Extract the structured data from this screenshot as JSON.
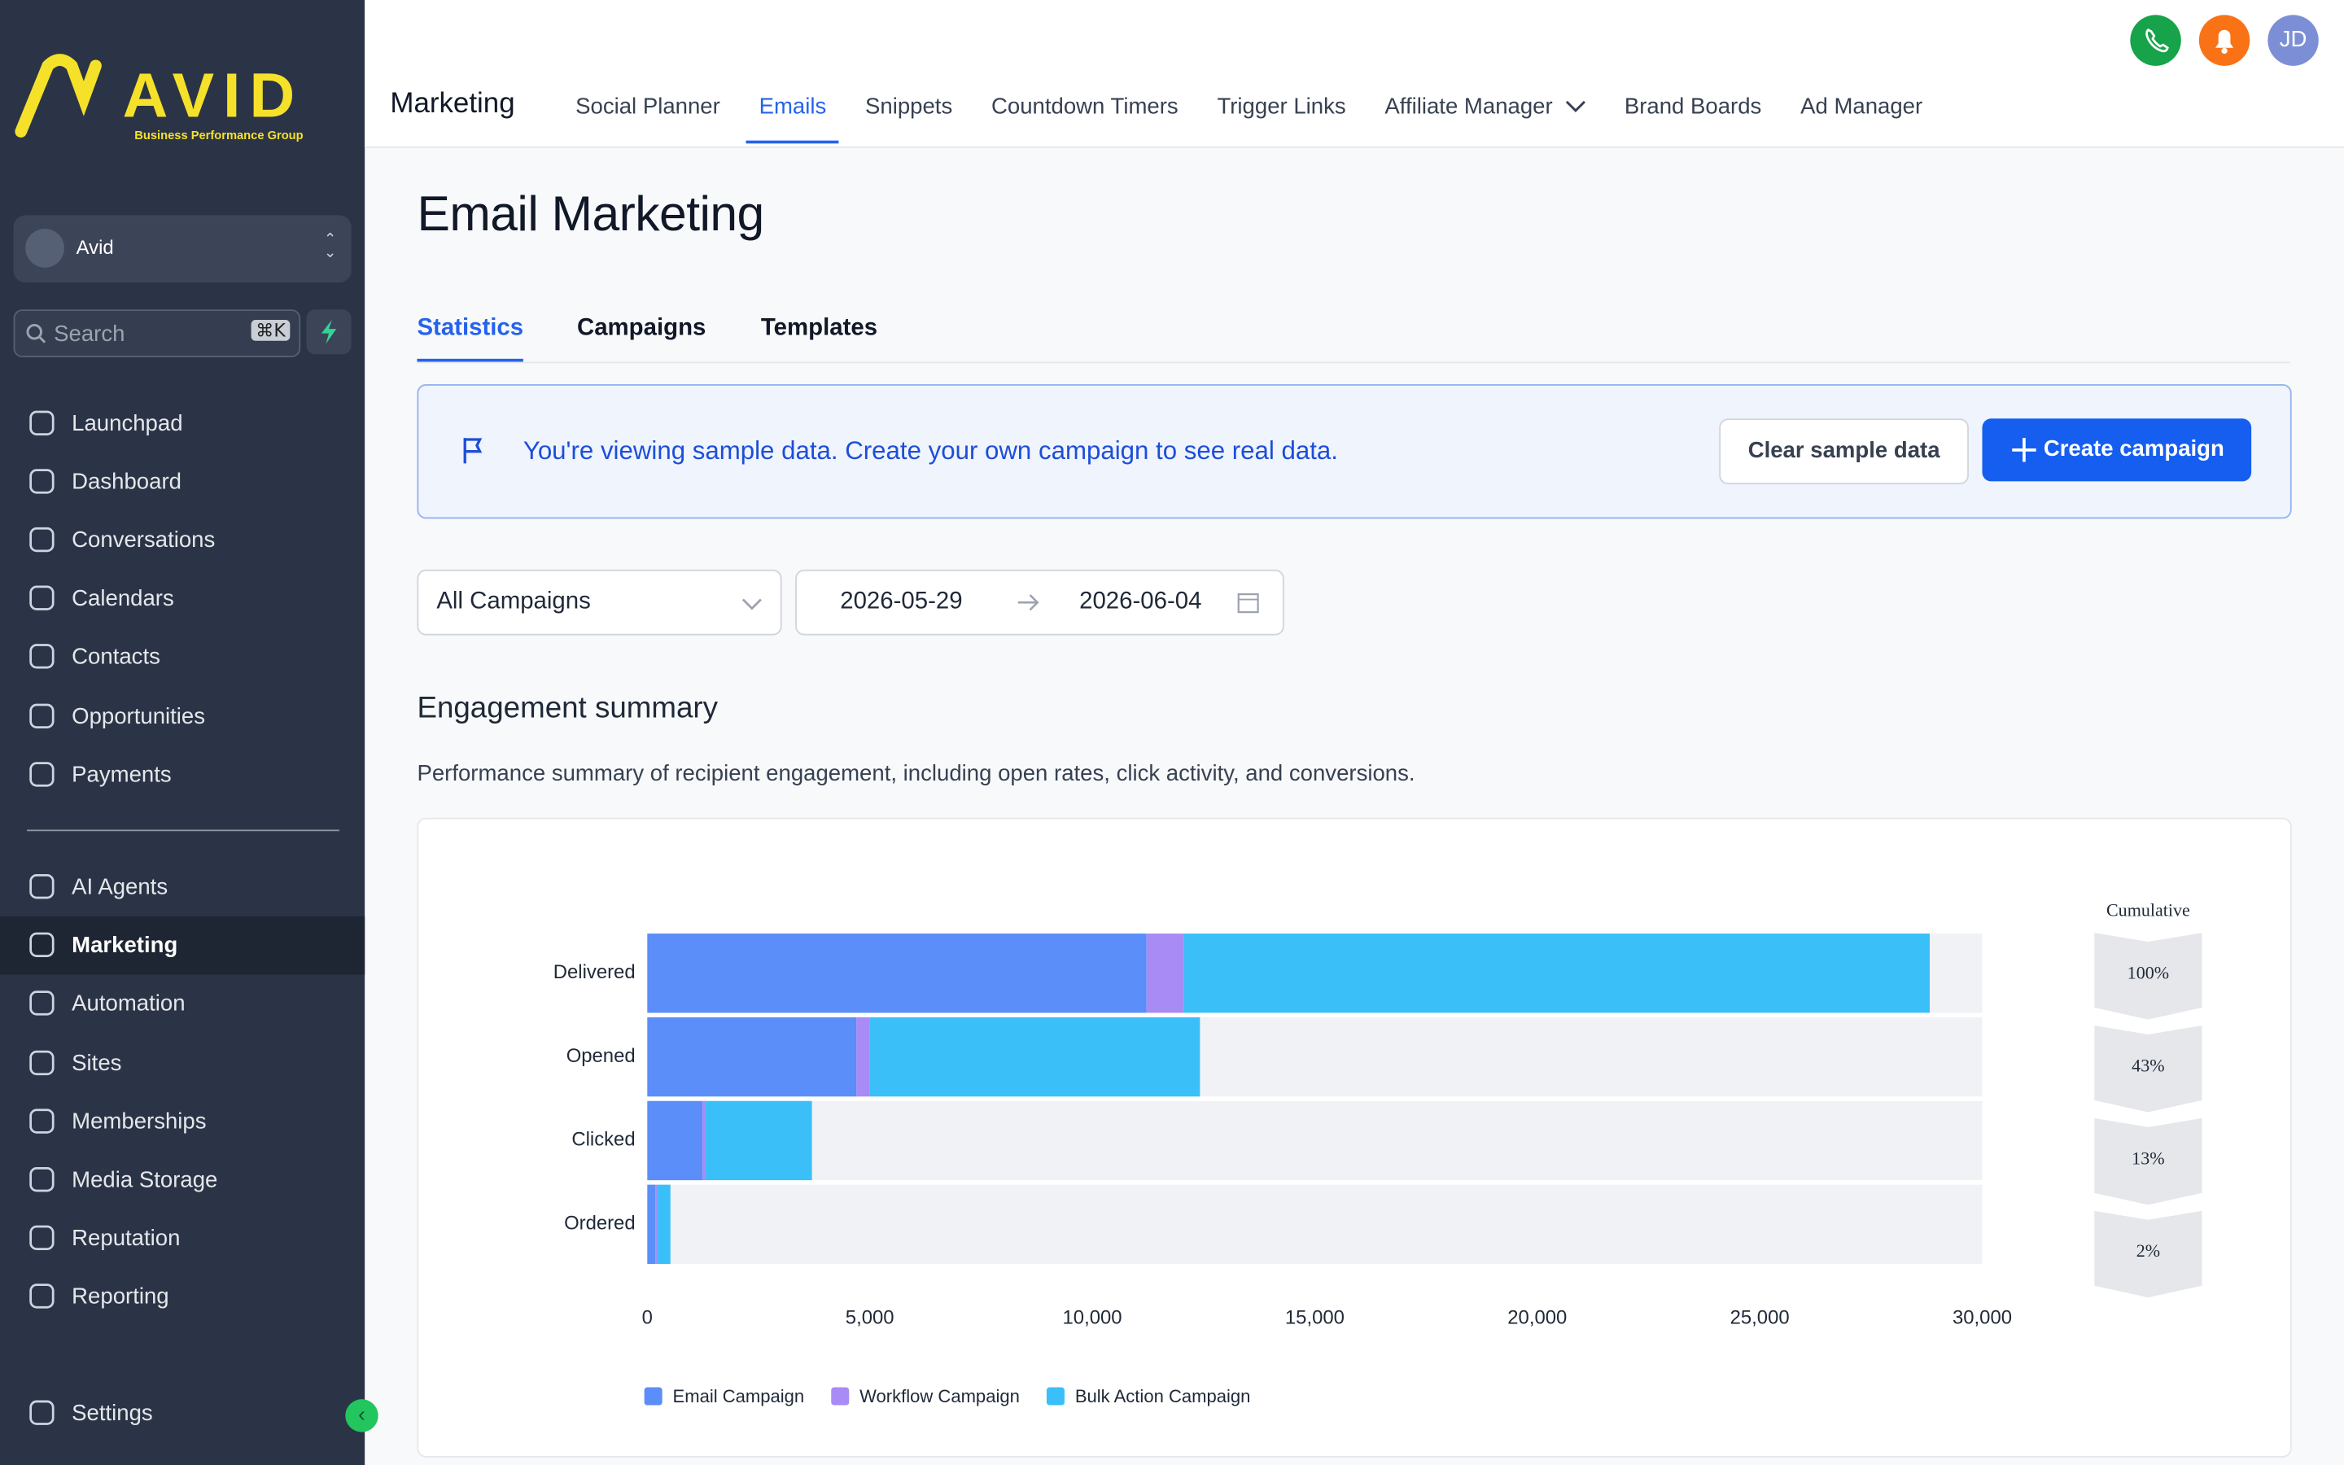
{
  "sidebar": {
    "logo": "AVID",
    "logo_sub": "Business Performance Group",
    "account": "Avid",
    "search": "Search",
    "shortcut": "⌘K",
    "nav_top": [
      "Launchpad",
      "Dashboard",
      "Conversations",
      "Calendars",
      "Contacts",
      "Opportunities",
      "Payments"
    ],
    "nav_bottom": [
      "AI Agents",
      "Marketing",
      "Automation",
      "Sites",
      "Memberships",
      "Media Storage",
      "Reputation",
      "Reporting"
    ],
    "settings": "Settings"
  },
  "topbar": {
    "title": "Marketing",
    "tabs": [
      "Social Planner",
      "Emails",
      "Snippets",
      "Countdown Timers",
      "Trigger Links",
      "Affiliate Manager",
      "Brand Boards",
      "Ad Manager"
    ],
    "avatar": "JD"
  },
  "page": {
    "title": "Email Marketing",
    "subtabs": [
      "Statistics",
      "Campaigns",
      "Templates"
    ],
    "banner": "You're viewing sample data. Create your own campaign to see real data.",
    "clear_button": "Clear sample data",
    "create_button": "Create campaign",
    "filter": "All Campaigns",
    "date_start": "2026-05-29",
    "date_end": "2026-06-04",
    "section_title": "Engagement summary",
    "section_description": "Performance summary of recipient engagement, including open rates, click activity, and conversions."
  },
  "chart_data": {
    "type": "stacked-bar-horizontal",
    "categories": [
      "Delivered",
      "Opened",
      "Clicked",
      "Ordered"
    ],
    "series": [
      {
        "name": "Email Campaign",
        "color": "#5b8ef8",
        "values": [
          11220,
          4700,
          1240,
          180
        ]
      },
      {
        "name": "Workflow Campaign",
        "color": "#a98bf5",
        "values": [
          840,
          300,
          70,
          40
        ]
      },
      {
        "name": "Bulk Action Campaign",
        "color": "#3bbff8",
        "values": [
          16760,
          7420,
          2390,
          300
        ]
      }
    ],
    "xlim": [
      0,
      30000
    ],
    "xticks": [
      0,
      {
        "value": 5000,
        "label": "5,000"
      },
      {
        "value": 10000,
        "label": "10,000"
      },
      {
        "value": 15000,
        "label": "15,000"
      },
      {
        "value": 20000,
        "label": "20,000"
      },
      {
        "value": 25000,
        "label": "25,000"
      },
      {
        "value": 30000,
        "label": "30,000"
      }
    ],
    "cumulative": {
      "title": "Cumulative",
      "values": [
        100,
        43,
        13,
        2
      ],
      "value_labels": [
        "100%",
        "43%",
        "13%",
        "2%"
      ]
    }
  }
}
